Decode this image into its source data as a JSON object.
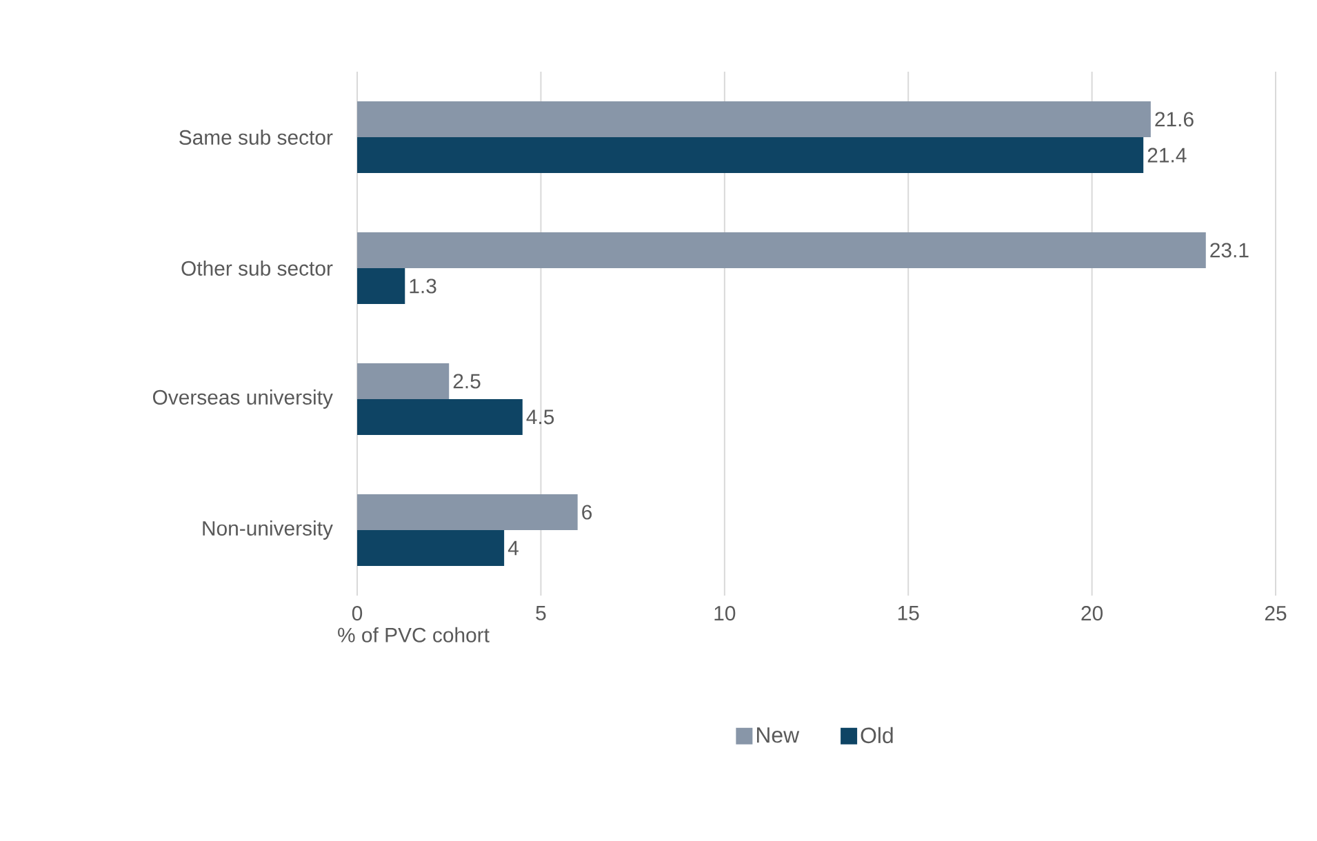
{
  "chart_data": {
    "type": "bar",
    "orientation": "horizontal",
    "categories": [
      "Same sub sector",
      "Other sub sector",
      "Overseas university",
      "Non-university"
    ],
    "series": [
      {
        "name": "New",
        "color": "#8896a8",
        "values": [
          21.6,
          23.1,
          2.5,
          6
        ]
      },
      {
        "name": "Old",
        "color": "#0e4464",
        "values": [
          21.4,
          1.3,
          4.5,
          4
        ]
      }
    ],
    "xlabel": "% of PVC cohort",
    "xlim": [
      0,
      25
    ],
    "xticks": [
      0,
      5,
      10,
      15,
      20,
      25
    ],
    "grid": "x",
    "data_labels": true,
    "legend": "bottom"
  }
}
